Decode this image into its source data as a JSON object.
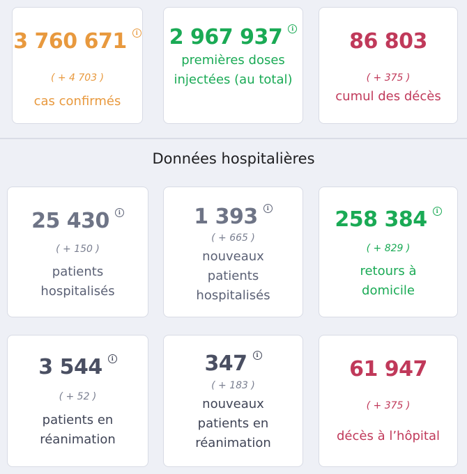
{
  "top": {
    "confirmed": {
      "value": "3 760 671",
      "delta": "( + 4 703 )",
      "label": "cas confirmés",
      "color": "#e8993e"
    },
    "first_doses": {
      "value": "2 967 937",
      "label": "premières doses injectées (au total)",
      "color": "#1aaa55"
    },
    "deaths": {
      "value": "86 803",
      "delta": "( + 375 )",
      "label": "cumul des décès",
      "color": "#c0395a"
    }
  },
  "section_title": "Données hospitalières",
  "hospital": {
    "hospitalized": {
      "value": "25 430",
      "delta": "( + 150 )",
      "label": "patients hospitalisés"
    },
    "new_hospitalized": {
      "value": "1 393",
      "delta": "( + 665 )",
      "label": "nouveaux patients hospitalisés"
    },
    "returned_home": {
      "value": "258 384",
      "delta": "( + 829 )",
      "label": "retours à domicile",
      "color": "#1aaa55"
    },
    "icu": {
      "value": "3 544",
      "delta": "( + 52 )",
      "label": "patients en réanimation"
    },
    "new_icu": {
      "value": "347",
      "delta": "( + 183 )",
      "label": "nouveaux patients en réanimation"
    },
    "hospital_deaths": {
      "value": "61 947",
      "delta": "( + 375 )",
      "label": "décès à l’hôpital",
      "color": "#c0395a"
    }
  },
  "icons": {
    "info": "info-circle-icon",
    "info_glyph": "i"
  }
}
